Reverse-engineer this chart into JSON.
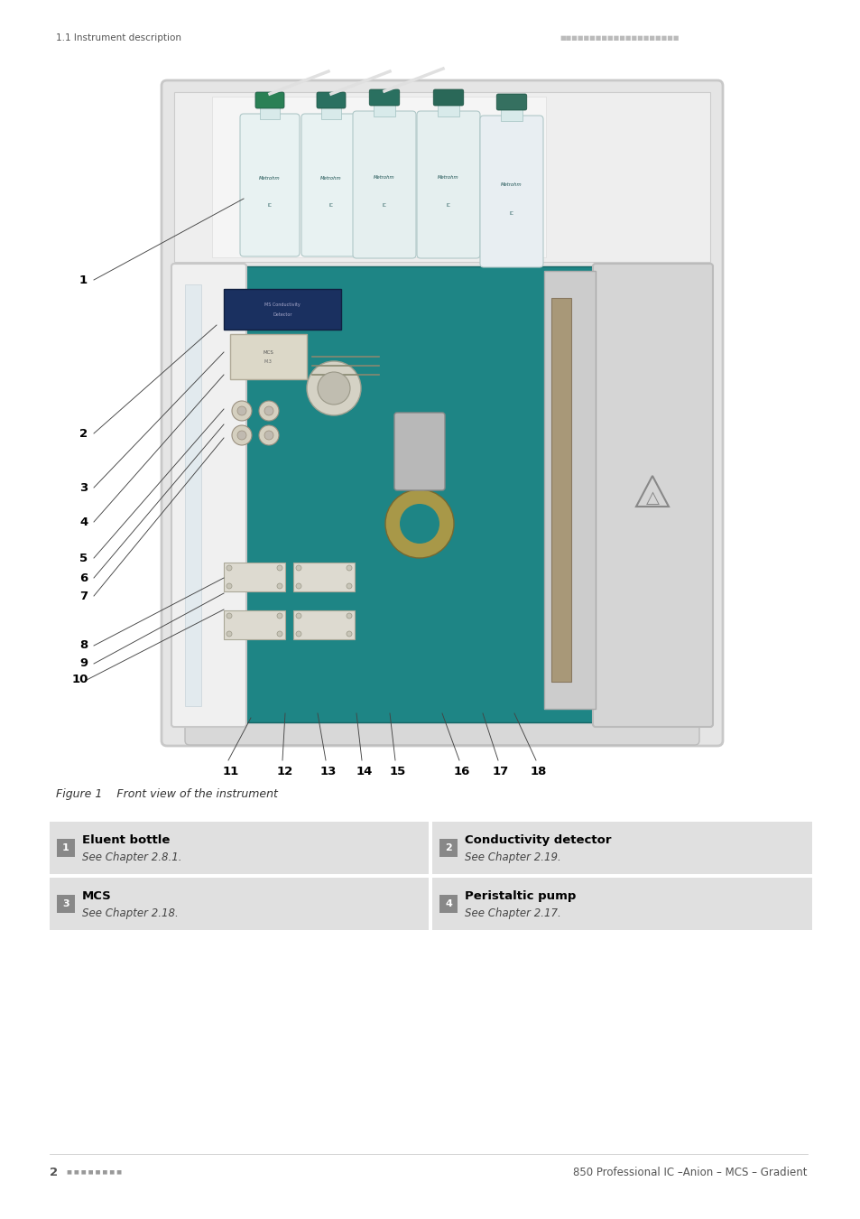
{
  "background_color": "#ffffff",
  "header_left": "1.1 Instrument description",
  "header_right_dots": "■■■■■■■■■■■■■■■■■■■■",
  "figure_caption": "Figure 1    Front view of the instrument",
  "footer_left_num": "2",
  "footer_right": "850 Professional IC –Anion – MCS – Gradient",
  "table_rows": [
    {
      "left_num": "1",
      "left_bold": "Eluent bottle",
      "left_sub": "See Chapter 2.8.1.",
      "right_num": "2",
      "right_bold": "Conductivity detector",
      "right_sub": "See Chapter 2.19."
    },
    {
      "left_num": "3",
      "left_bold": "MCS",
      "left_sub": "See Chapter 2.18.",
      "right_num": "4",
      "right_bold": "Peristaltic pump",
      "right_sub": "See Chapter 2.17."
    }
  ],
  "table_bg": "#e0e0e0",
  "left_labels": [
    [
      "1",
      88,
      1040
    ],
    [
      "2",
      88,
      870
    ],
    [
      "3",
      88,
      810
    ],
    [
      "4",
      88,
      772
    ],
    [
      "5",
      88,
      732
    ],
    [
      "6",
      88,
      710
    ],
    [
      "7",
      88,
      690
    ],
    [
      "8",
      88,
      635
    ],
    [
      "9",
      88,
      615
    ],
    [
      "10",
      80,
      598
    ]
  ],
  "bottom_labels": [
    [
      "11",
      248,
      495
    ],
    [
      "12",
      308,
      495
    ],
    [
      "13",
      358,
      495
    ],
    [
      "14",
      398,
      495
    ],
    [
      "15",
      435,
      495
    ],
    [
      "16",
      505,
      495
    ],
    [
      "17",
      548,
      495
    ],
    [
      "18",
      590,
      495
    ]
  ]
}
